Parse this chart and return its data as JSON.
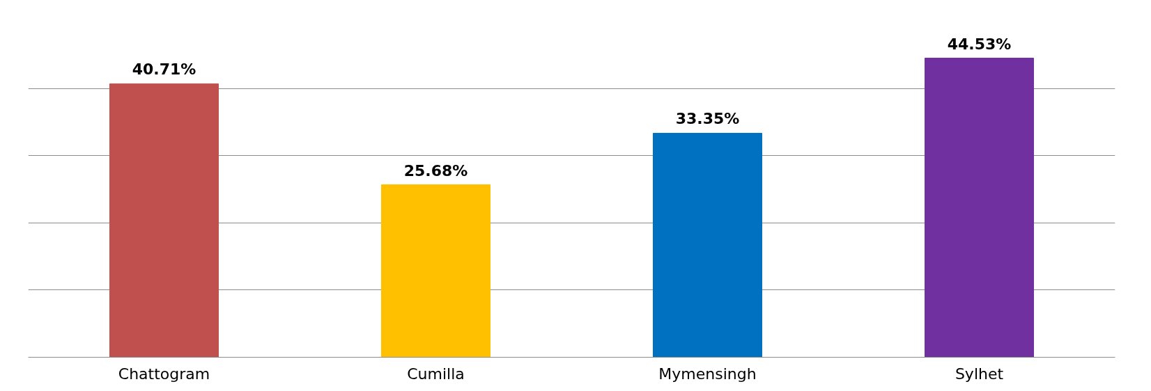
{
  "chart_data": {
    "type": "bar",
    "categories": [
      "Chattogram",
      "Cumilla",
      "Mymensingh",
      "Sylhet"
    ],
    "values": [
      40.71,
      25.68,
      33.35,
      44.53
    ],
    "colors": [
      "#c0504d",
      "#ffc000",
      "#0070c0",
      "#7030a0"
    ],
    "value_labels": [
      "40.71%",
      "25.68%",
      "33.35%",
      "44.53%"
    ],
    "grid": "y",
    "tick_labels": "x"
  }
}
